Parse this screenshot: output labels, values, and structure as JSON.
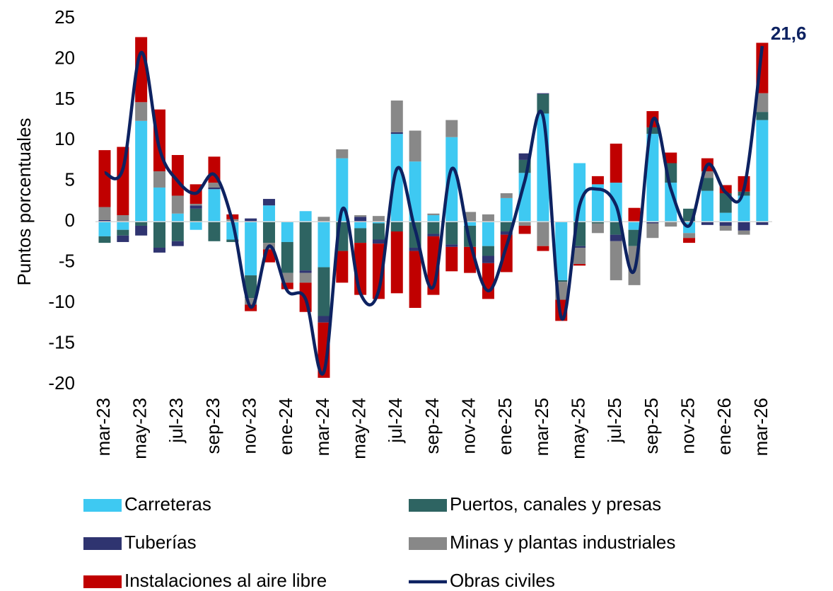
{
  "chart_data": {
    "type": "bar",
    "y_label": "Puntos porcentuales",
    "categories": [
      "mar-23",
      null,
      "may-23",
      null,
      "jul-23",
      null,
      "sep-23",
      null,
      "nov-23",
      null,
      "ene-24",
      null,
      "mar-24",
      null,
      "may-24",
      null,
      "jul-24",
      null,
      "sep-24",
      null,
      "nov-24",
      null,
      "ene-25",
      null,
      "mar-25",
      null,
      "may-25",
      null,
      "jul-25",
      null,
      "sep-25",
      null,
      "nov-25",
      null,
      "ene-26",
      null,
      "mar-26"
    ],
    "ylim": [
      -20,
      25
    ],
    "yticks": [
      -20,
      -15,
      -10,
      -5,
      0,
      5,
      10,
      15,
      20,
      25
    ],
    "series": [
      {
        "name": "Carreteras",
        "color": "#3ec9f2",
        "values": [
          -1.8,
          -1,
          12.4,
          4.2,
          1,
          -1,
          4,
          -2.2,
          -6.6,
          2,
          -2.5,
          1.3,
          -5.6,
          7.8,
          -0.8,
          -0.2,
          10.8,
          7.4,
          0.8,
          10.4,
          -0.5,
          -3,
          2.9,
          6,
          13.3,
          -7.2,
          7.2,
          4.6,
          4.8,
          -1,
          10.8,
          4.8,
          -1.4,
          3.8,
          1.1,
          3.2,
          12.5
        ]
      },
      {
        "name": "Puertos, canales y presas",
        "color": "#2e6462",
        "values": [
          -0.8,
          -0.7,
          -0.5,
          -3.2,
          -2.4,
          1.6,
          -2.4,
          -0.3,
          -2.8,
          -2.6,
          -3.8,
          -6,
          -6,
          -3.6,
          -1.8,
          -2,
          -1.2,
          -3.2,
          -1.5,
          -2.8,
          -2.6,
          -1.2,
          -1.2,
          1.6,
          2.4,
          -0.2,
          -3,
          -0.2,
          -1.6,
          -2,
          0.8,
          2.4,
          1.6,
          1.6,
          2.4,
          0.5,
          1
        ]
      },
      {
        "name": "Tuberías",
        "color": "#2f3470",
        "values": [
          0.2,
          -0.8,
          -1.2,
          -0.6,
          -0.6,
          0.4,
          0.2,
          0,
          0.4,
          0.8,
          0,
          -0.3,
          -0.8,
          0,
          0.6,
          -0.5,
          0.2,
          -0.4,
          -0.3,
          -0.3,
          0,
          -0.9,
          -0.4,
          0.8,
          0.1,
          0,
          -0.2,
          0,
          -0.8,
          0,
          -0.2,
          0,
          0,
          -0.4,
          -0.5,
          -1.1,
          -0.4
        ]
      },
      {
        "name": "Minas y plantas industriales",
        "color": "#888888",
        "values": [
          1.6,
          0.8,
          2.3,
          2,
          2.2,
          0.2,
          0.6,
          0.3,
          -0.8,
          -0.8,
          -1.2,
          -1.2,
          0.6,
          1.1,
          0.2,
          0.7,
          3.9,
          3.8,
          0.2,
          2.1,
          1.2,
          0.9,
          0.6,
          -0.5,
          -3,
          -2.2,
          -2,
          -1.2,
          -4.8,
          -4.8,
          -1.8,
          -0.6,
          -0.6,
          0.8,
          -0.6,
          -0.5,
          2.3
        ]
      },
      {
        "name": "Instalaciones al aire libre",
        "color": "#c00000",
        "values": [
          7,
          8.4,
          8,
          7.6,
          5,
          2.4,
          3.2,
          0.6,
          -0.8,
          -1.6,
          -0.8,
          -3.6,
          -6.8,
          -3.9,
          -6.4,
          -6.8,
          -7.6,
          -7,
          -7.2,
          -3,
          -3.2,
          -4.4,
          -4.6,
          -1,
          -0.6,
          -2.6,
          -0.2,
          1,
          4.8,
          1.7,
          2,
          1.3,
          -0.6,
          1.6,
          1,
          1.9,
          6.2
        ]
      }
    ],
    "line": {
      "name": "Obras civiles",
      "color": "#0d2261",
      "values": [
        6,
        6.5,
        20.8,
        9,
        5,
        3.5,
        5.8,
        0,
        -10.5,
        -3,
        -8.5,
        -9.5,
        -18.5,
        1.5,
        -8.8,
        -8.5,
        6.5,
        -1,
        -8,
        6.5,
        -2.5,
        -8.5,
        -3,
        5,
        13,
        -11.8,
        2,
        4,
        2,
        -6,
        12.5,
        4,
        -0.5,
        7,
        3.6,
        4,
        21.6
      ],
      "value_labels": [
        null,
        null,
        null,
        null,
        null,
        null,
        null,
        null,
        null,
        null,
        null,
        null,
        null,
        null,
        null,
        null,
        null,
        null,
        null,
        null,
        null,
        null,
        null,
        null,
        null,
        null,
        null,
        null,
        null,
        null,
        null,
        null,
        null,
        null,
        null,
        null,
        "21,6"
      ]
    }
  }
}
